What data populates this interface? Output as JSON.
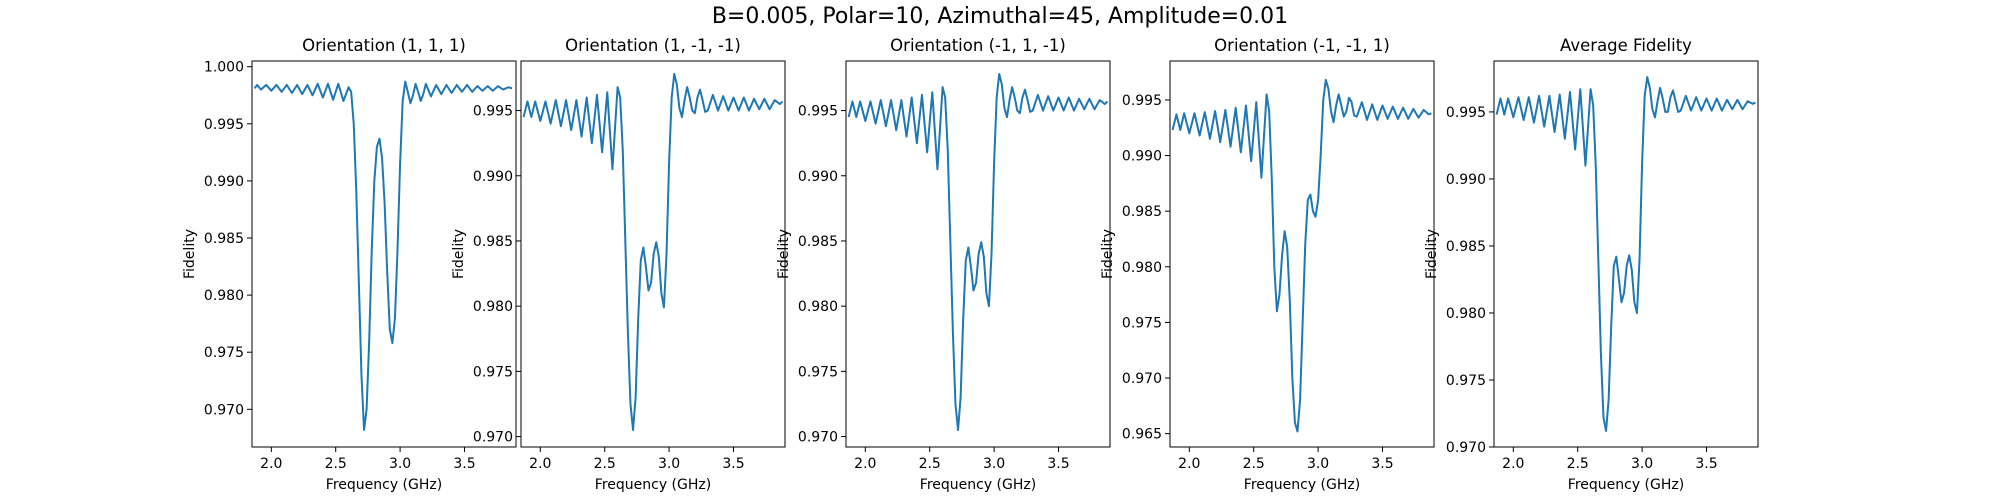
{
  "figure": {
    "suptitle": "B=0.005, Polar=10, Azimuthal=45, Amplitude=0.01",
    "line_color": "#1f77b4"
  },
  "chart_data": [
    {
      "type": "line",
      "title": "Orientation (1, 1, 1)",
      "xlabel": "Frequency (GHz)",
      "ylabel": "Fidelity",
      "xlim": [
        1.85,
        3.9
      ],
      "ylim": [
        0.9667,
        1.0005
      ],
      "xticks": [
        2.0,
        2.5,
        3.0,
        3.5
      ],
      "xtick_labels": [
        "2.0",
        "2.5",
        "3.0",
        "3.5"
      ],
      "yticks": [
        0.97,
        0.975,
        0.98,
        0.985,
        0.99,
        0.995,
        1.0
      ],
      "ytick_labels": [
        "0.970",
        "0.975",
        "0.980",
        "0.985",
        "0.990",
        "0.995",
        "1.000"
      ],
      "series": [
        {
          "x": [
            1.87,
            1.89,
            1.92,
            1.96,
            2.0,
            2.04,
            2.08,
            2.12,
            2.16,
            2.2,
            2.24,
            2.28,
            2.32,
            2.36,
            2.4,
            2.44,
            2.48,
            2.52,
            2.56,
            2.6,
            2.62,
            2.64,
            2.66,
            2.68,
            2.7,
            2.72,
            2.74,
            2.76,
            2.78,
            2.8,
            2.82,
            2.84,
            2.86,
            2.88,
            2.9,
            2.92,
            2.94,
            2.96,
            2.98,
            3.0,
            3.02,
            3.04,
            3.06,
            3.08,
            3.1,
            3.12,
            3.14,
            3.16,
            3.18,
            3.2,
            3.24,
            3.28,
            3.32,
            3.36,
            3.4,
            3.44,
            3.48,
            3.52,
            3.56,
            3.6,
            3.64,
            3.68,
            3.72,
            3.76,
            3.8,
            3.84,
            3.87
          ],
          "y": [
            0.9981,
            0.9984,
            0.998,
            0.9984,
            0.9979,
            0.9984,
            0.9978,
            0.9984,
            0.9977,
            0.9984,
            0.9976,
            0.9984,
            0.9975,
            0.9985,
            0.9973,
            0.9985,
            0.9971,
            0.9985,
            0.997,
            0.9982,
            0.9978,
            0.995,
            0.989,
            0.981,
            0.973,
            0.9682,
            0.97,
            0.976,
            0.984,
            0.99,
            0.993,
            0.9937,
            0.992,
            0.988,
            0.982,
            0.977,
            0.9758,
            0.978,
            0.984,
            0.9915,
            0.997,
            0.9987,
            0.9978,
            0.9968,
            0.9975,
            0.9985,
            0.9978,
            0.997,
            0.9976,
            0.9985,
            0.9974,
            0.9984,
            0.9976,
            0.9984,
            0.9977,
            0.9984,
            0.9978,
            0.9984,
            0.9978,
            0.9983,
            0.9979,
            0.9983,
            0.9979,
            0.9983,
            0.998,
            0.9982,
            0.9981
          ]
        }
      ]
    },
    {
      "type": "line",
      "title": "Orientation (1, -1, -1)",
      "xlabel": "Frequency (GHz)",
      "ylabel": "Fidelity",
      "xlim": [
        1.85,
        3.9
      ],
      "ylim": [
        0.9692,
        0.9988
      ],
      "xticks": [
        2.0,
        2.5,
        3.0,
        3.5
      ],
      "xtick_labels": [
        "2.0",
        "2.5",
        "3.0",
        "3.5"
      ],
      "yticks": [
        0.97,
        0.975,
        0.98,
        0.985,
        0.99,
        0.995
      ],
      "ytick_labels": [
        "0.970",
        "0.975",
        "0.980",
        "0.985",
        "0.990",
        "0.995"
      ],
      "series": [
        {
          "x": [
            1.87,
            1.9,
            1.93,
            1.96,
            2.0,
            2.04,
            2.08,
            2.12,
            2.16,
            2.2,
            2.24,
            2.28,
            2.32,
            2.36,
            2.4,
            2.44,
            2.48,
            2.52,
            2.56,
            2.6,
            2.62,
            2.64,
            2.66,
            2.68,
            2.7,
            2.72,
            2.74,
            2.76,
            2.78,
            2.8,
            2.82,
            2.84,
            2.86,
            2.88,
            2.9,
            2.92,
            2.94,
            2.96,
            2.98,
            3.0,
            3.02,
            3.04,
            3.06,
            3.08,
            3.1,
            3.12,
            3.14,
            3.16,
            3.18,
            3.2,
            3.22,
            3.24,
            3.26,
            3.28,
            3.3,
            3.34,
            3.38,
            3.42,
            3.46,
            3.5,
            3.54,
            3.58,
            3.62,
            3.66,
            3.7,
            3.74,
            3.78,
            3.82,
            3.86,
            3.88
          ],
          "y": [
            0.9945,
            0.9957,
            0.9945,
            0.9957,
            0.9942,
            0.9957,
            0.994,
            0.9958,
            0.9938,
            0.9958,
            0.9935,
            0.9958,
            0.993,
            0.996,
            0.9925,
            0.9962,
            0.9918,
            0.9964,
            0.9905,
            0.9968,
            0.996,
            0.992,
            0.985,
            0.978,
            0.9725,
            0.9705,
            0.973,
            0.979,
            0.9835,
            0.9845,
            0.983,
            0.9812,
            0.9818,
            0.984,
            0.9849,
            0.9838,
            0.981,
            0.9799,
            0.984,
            0.991,
            0.996,
            0.9978,
            0.997,
            0.9952,
            0.9945,
            0.9958,
            0.9968,
            0.996,
            0.995,
            0.9948,
            0.996,
            0.9966,
            0.9958,
            0.9949,
            0.995,
            0.9962,
            0.995,
            0.9961,
            0.995,
            0.996,
            0.995,
            0.996,
            0.995,
            0.9959,
            0.9951,
            0.9959,
            0.9951,
            0.9958,
            0.9955,
            0.9957
          ]
        }
      ]
    },
    {
      "type": "line",
      "title": "Orientation (-1, 1, -1)",
      "xlabel": "Frequency (GHz)",
      "ylabel": "Fidelity",
      "xlim": [
        1.85,
        3.9
      ],
      "ylim": [
        0.9692,
        0.9988
      ],
      "xticks": [
        2.0,
        2.5,
        3.0,
        3.5
      ],
      "xtick_labels": [
        "2.0",
        "2.5",
        "3.0",
        "3.5"
      ],
      "yticks": [
        0.97,
        0.975,
        0.98,
        0.985,
        0.99,
        0.995
      ],
      "ytick_labels": [
        "0.970",
        "0.975",
        "0.980",
        "0.985",
        "0.990",
        "0.995"
      ],
      "series": [
        {
          "x": [
            1.87,
            1.9,
            1.93,
            1.96,
            2.0,
            2.04,
            2.08,
            2.12,
            2.16,
            2.2,
            2.24,
            2.28,
            2.32,
            2.36,
            2.4,
            2.44,
            2.48,
            2.52,
            2.56,
            2.6,
            2.62,
            2.64,
            2.66,
            2.68,
            2.7,
            2.72,
            2.74,
            2.76,
            2.78,
            2.8,
            2.82,
            2.84,
            2.86,
            2.88,
            2.9,
            2.92,
            2.94,
            2.96,
            2.98,
            3.0,
            3.02,
            3.04,
            3.06,
            3.08,
            3.1,
            3.12,
            3.14,
            3.16,
            3.18,
            3.2,
            3.22,
            3.24,
            3.26,
            3.28,
            3.3,
            3.34,
            3.38,
            3.42,
            3.46,
            3.5,
            3.54,
            3.58,
            3.62,
            3.66,
            3.7,
            3.74,
            3.78,
            3.82,
            3.86,
            3.88
          ],
          "y": [
            0.9945,
            0.9957,
            0.9945,
            0.9957,
            0.9942,
            0.9957,
            0.994,
            0.9958,
            0.9938,
            0.9958,
            0.9935,
            0.9958,
            0.993,
            0.996,
            0.9925,
            0.9962,
            0.9918,
            0.9964,
            0.9905,
            0.9968,
            0.996,
            0.992,
            0.985,
            0.978,
            0.9725,
            0.9705,
            0.973,
            0.979,
            0.9835,
            0.9845,
            0.983,
            0.9812,
            0.9818,
            0.984,
            0.9849,
            0.9838,
            0.981,
            0.98,
            0.984,
            0.991,
            0.996,
            0.9978,
            0.997,
            0.9952,
            0.9945,
            0.9958,
            0.9968,
            0.996,
            0.995,
            0.9948,
            0.996,
            0.9966,
            0.9958,
            0.9949,
            0.995,
            0.9962,
            0.995,
            0.9961,
            0.995,
            0.996,
            0.995,
            0.996,
            0.995,
            0.9959,
            0.9951,
            0.9959,
            0.9951,
            0.9958,
            0.9955,
            0.9957
          ]
        }
      ]
    },
    {
      "type": "line",
      "title": "Orientation (-1, -1, 1)",
      "xlabel": "Frequency (GHz)",
      "ylabel": "Fidelity",
      "xlim": [
        1.85,
        3.9
      ],
      "ylim": [
        0.9638,
        0.9985
      ],
      "xticks": [
        2.0,
        2.5,
        3.0,
        3.5
      ],
      "xtick_labels": [
        "2.0",
        "2.5",
        "3.0",
        "3.5"
      ],
      "yticks": [
        0.965,
        0.97,
        0.975,
        0.98,
        0.985,
        0.99,
        0.995
      ],
      "ytick_labels": [
        "0.965",
        "0.970",
        "0.975",
        "0.980",
        "0.985",
        "0.990",
        "0.995"
      ],
      "series": [
        {
          "x": [
            1.87,
            1.9,
            1.93,
            1.96,
            2.0,
            2.04,
            2.08,
            2.12,
            2.16,
            2.2,
            2.24,
            2.28,
            2.32,
            2.36,
            2.4,
            2.44,
            2.48,
            2.52,
            2.56,
            2.6,
            2.62,
            2.64,
            2.66,
            2.68,
            2.7,
            2.72,
            2.74,
            2.76,
            2.78,
            2.8,
            2.82,
            2.84,
            2.86,
            2.88,
            2.9,
            2.92,
            2.94,
            2.96,
            2.98,
            3.0,
            3.02,
            3.04,
            3.06,
            3.08,
            3.1,
            3.12,
            3.14,
            3.16,
            3.18,
            3.2,
            3.22,
            3.24,
            3.26,
            3.28,
            3.3,
            3.34,
            3.38,
            3.42,
            3.46,
            3.5,
            3.54,
            3.58,
            3.62,
            3.66,
            3.7,
            3.74,
            3.78,
            3.82,
            3.86,
            3.88
          ],
          "y": [
            0.9923,
            0.9937,
            0.9923,
            0.9938,
            0.992,
            0.9938,
            0.9918,
            0.9939,
            0.9915,
            0.994,
            0.9912,
            0.9941,
            0.9908,
            0.9943,
            0.9903,
            0.9945,
            0.9895,
            0.9948,
            0.988,
            0.9955,
            0.994,
            0.988,
            0.98,
            0.976,
            0.9775,
            0.981,
            0.9832,
            0.9818,
            0.977,
            0.97,
            0.966,
            0.9652,
            0.968,
            0.975,
            0.982,
            0.986,
            0.9865,
            0.985,
            0.9845,
            0.986,
            0.99,
            0.995,
            0.9968,
            0.996,
            0.994,
            0.993,
            0.9945,
            0.9955,
            0.9945,
            0.9935,
            0.994,
            0.9952,
            0.9948,
            0.9936,
            0.9935,
            0.9948,
            0.9932,
            0.9946,
            0.9932,
            0.9945,
            0.9933,
            0.9944,
            0.9933,
            0.9943,
            0.9933,
            0.9942,
            0.9934,
            0.9941,
            0.9937,
            0.9938
          ]
        }
      ]
    },
    {
      "type": "line",
      "title": "Average Fidelity",
      "xlabel": "Frequency (GHz)",
      "ylabel": "Fidelity",
      "xlim": [
        1.85,
        3.9
      ],
      "ylim": [
        0.97,
        0.9988
      ],
      "xticks": [
        2.0,
        2.5,
        3.0,
        3.5
      ],
      "xtick_labels": [
        "2.0",
        "2.5",
        "3.0",
        "3.5"
      ],
      "yticks": [
        0.97,
        0.975,
        0.98,
        0.985,
        0.99,
        0.995
      ],
      "ytick_labels": [
        "0.970",
        "0.975",
        "0.980",
        "0.985",
        "0.990",
        "0.995"
      ],
      "series": [
        {
          "x": [
            1.87,
            1.9,
            1.93,
            1.96,
            2.0,
            2.04,
            2.08,
            2.12,
            2.16,
            2.2,
            2.24,
            2.28,
            2.32,
            2.36,
            2.4,
            2.44,
            2.48,
            2.52,
            2.56,
            2.6,
            2.62,
            2.64,
            2.66,
            2.68,
            2.7,
            2.72,
            2.74,
            2.76,
            2.78,
            2.8,
            2.82,
            2.84,
            2.86,
            2.88,
            2.9,
            2.92,
            2.94,
            2.96,
            2.98,
            3.0,
            3.02,
            3.04,
            3.06,
            3.08,
            3.1,
            3.12,
            3.14,
            3.16,
            3.18,
            3.2,
            3.22,
            3.24,
            3.26,
            3.28,
            3.3,
            3.34,
            3.38,
            3.42,
            3.46,
            3.5,
            3.54,
            3.58,
            3.62,
            3.66,
            3.7,
            3.74,
            3.78,
            3.82,
            3.86,
            3.88
          ],
          "y": [
            0.9948,
            0.996,
            0.9948,
            0.996,
            0.9946,
            0.9961,
            0.9944,
            0.9961,
            0.9942,
            0.9962,
            0.9939,
            0.9962,
            0.9935,
            0.9963,
            0.993,
            0.9965,
            0.9922,
            0.9967,
            0.991,
            0.9967,
            0.9955,
            0.991,
            0.984,
            0.977,
            0.9722,
            0.9712,
            0.9735,
            0.979,
            0.9835,
            0.9842,
            0.9825,
            0.9808,
            0.9815,
            0.9835,
            0.9843,
            0.9832,
            0.9808,
            0.98,
            0.984,
            0.9912,
            0.9962,
            0.9976,
            0.9968,
            0.9952,
            0.9946,
            0.9958,
            0.9968,
            0.996,
            0.995,
            0.995,
            0.9961,
            0.9966,
            0.9958,
            0.995,
            0.9951,
            0.9962,
            0.9951,
            0.9961,
            0.9951,
            0.996,
            0.9951,
            0.996,
            0.9951,
            0.9959,
            0.9952,
            0.9959,
            0.9952,
            0.9958,
            0.9956,
            0.9957
          ]
        }
      ]
    }
  ]
}
